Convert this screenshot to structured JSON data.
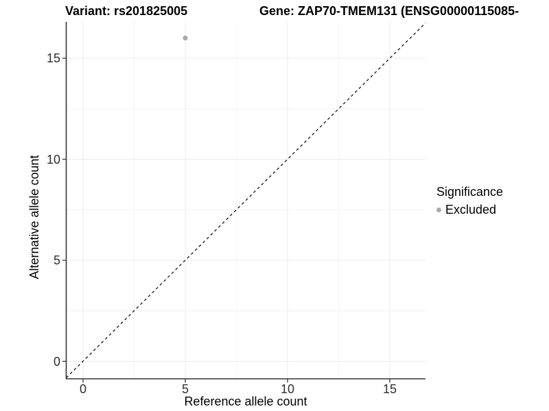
{
  "header": {
    "title_left": "Variant: rs201825005",
    "title_right": "Gene: ZAP70-TMEM131 (ENSG00000115085-"
  },
  "chart_data": {
    "type": "scatter",
    "title_left": "Variant: rs201825005",
    "title_right": "Gene: ZAP70-TMEM131 (ENSG00000115085-",
    "xlabel": "Reference allele count",
    "ylabel": "Alternative allele count",
    "x_ticks": [
      "0",
      "5",
      "10",
      "15"
    ],
    "y_ticks": [
      "0",
      "5",
      "10",
      "15"
    ],
    "x_tick_values": [
      0,
      5,
      10,
      15
    ],
    "y_tick_values": [
      0,
      5,
      10,
      15
    ],
    "xlim": [
      -0.85,
      16.75
    ],
    "ylim": [
      -0.85,
      16.8
    ],
    "grid": "major+minor",
    "series": [
      {
        "name": "Excluded",
        "color": "#ababab",
        "points": [
          {
            "x": 5,
            "y": 16
          }
        ]
      }
    ],
    "reference_line": {
      "type": "identity",
      "equation": "y = x",
      "style": "dashed",
      "color": "#111111"
    },
    "legend": {
      "title": "Significance",
      "position": "right",
      "items": [
        {
          "label": "Excluded",
          "color": "#ababab"
        }
      ]
    },
    "style": {
      "background": "#ffffff",
      "grid_major_color": "#ebebeb",
      "grid_minor_color": "#f4f4f4",
      "axis_line_color": "#333333",
      "point_color": "#ababab"
    }
  }
}
